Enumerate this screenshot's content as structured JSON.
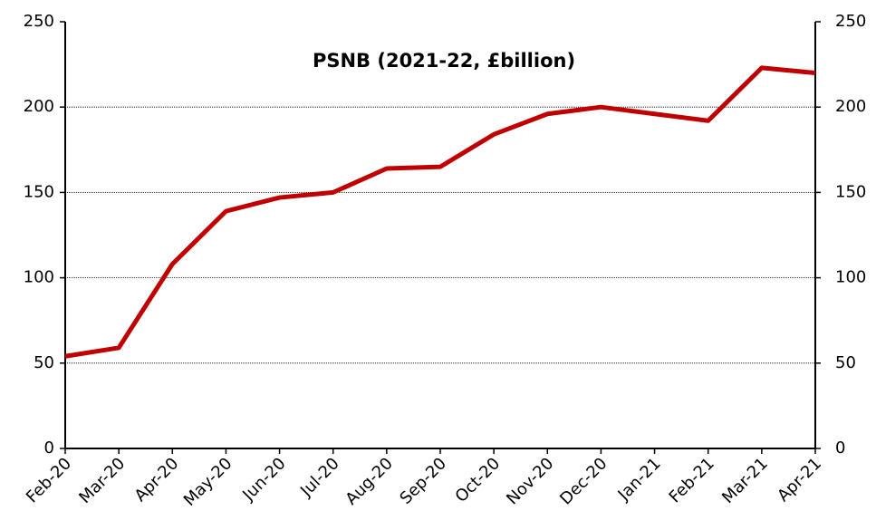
{
  "chart_data": {
    "type": "line",
    "title": "PSNB (2021-22, £billion)",
    "categories": [
      "Feb-20",
      "Mar-20",
      "Apr-20",
      "May-20",
      "Jun-20",
      "Jul-20",
      "Aug-20",
      "Sep-20",
      "Oct-20",
      "Nov-20",
      "Dec-20",
      "Jan-21",
      "Feb-21",
      "Mar-21",
      "Apr-21"
    ],
    "series": [
      {
        "name": "PSNB",
        "color": "#c00000",
        "values": [
          54,
          59,
          108,
          139,
          147,
          150,
          164,
          165,
          184,
          196,
          200,
          196,
          192,
          223,
          220
        ]
      }
    ],
    "ylim": [
      0,
      250
    ],
    "yticks": [
      0,
      50,
      100,
      150,
      200,
      250
    ],
    "y2lim": [
      0,
      250
    ],
    "y2ticks": [
      0,
      50,
      100,
      150,
      200,
      250
    ],
    "grid": true
  }
}
